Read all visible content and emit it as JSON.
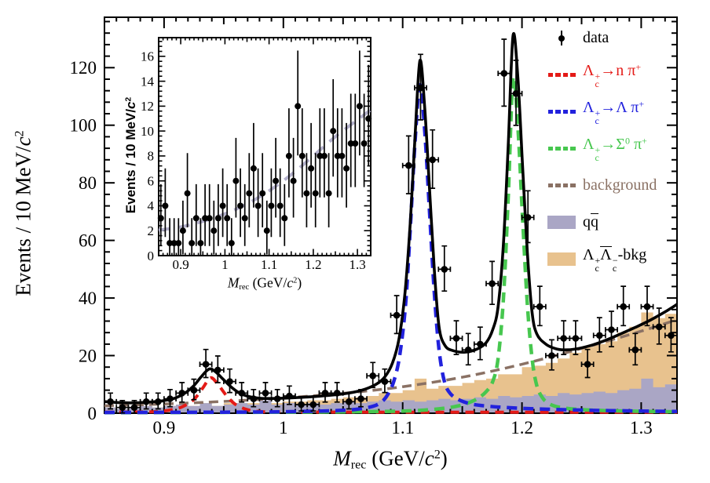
{
  "figure": {
    "description": "Recoil-mass spectrum fit with three signal peaks and backgrounds, with inset of sideband background"
  },
  "colors": {
    "total_fit": "#000000",
    "signal_n_pi": "#e41a17",
    "signal_lambda_pi": "#2222dd",
    "signal_sigma0_pi": "#47c74f",
    "background_curve": "#8a7164",
    "qqbar_fill": "#aaa6c5",
    "lcbkg_fill": "#e8c28e",
    "inset_curve": "#b4b1cc",
    "data_marker": "#000000"
  },
  "legend": {
    "items": [
      {
        "id": "data",
        "marker": "data-point",
        "color": "#000000",
        "text_color": "#000000",
        "parts": [
          {
            "t": "data"
          }
        ]
      },
      {
        "id": "lc-to-n-pi",
        "marker": "dashes",
        "color": "#e41a17",
        "text_color": "#e41a17",
        "parts": [
          {
            "t": "Λ",
            "sub": "c",
            "sup": "+"
          },
          {
            "t": "→n "
          },
          {
            "t": "π",
            "sup": "+"
          }
        ]
      },
      {
        "id": "lc-to-lambda-pi",
        "marker": "dashes",
        "color": "#2222dd",
        "text_color": "#2222dd",
        "parts": [
          {
            "t": "Λ",
            "sub": "c",
            "sup": "+"
          },
          {
            "t": "→Λ "
          },
          {
            "t": "π",
            "sup": "+"
          }
        ]
      },
      {
        "id": "lc-to-sigma0-pi",
        "marker": "dashes",
        "color": "#47c74f",
        "text_color": "#47c74f",
        "parts": [
          {
            "t": "Λ",
            "sub": "c",
            "sup": "+"
          },
          {
            "t": "→"
          },
          {
            "t": "Σ",
            "sup": "0"
          },
          {
            "t": " π",
            "sup": "+"
          }
        ]
      },
      {
        "id": "background",
        "marker": "dashes",
        "color": "#8a7164",
        "text_color": "#8a7164",
        "parts": [
          {
            "t": "background"
          }
        ]
      },
      {
        "id": "qqbar",
        "marker": "fill",
        "color": "#aaa6c5",
        "text_color": "#000000",
        "parts": [
          {
            "t": "q"
          },
          {
            "t": "q",
            "bar": true
          }
        ]
      },
      {
        "id": "lclcbar-bkg",
        "marker": "fill",
        "color": "#e8c28e",
        "text_color": "#000000",
        "parts": [
          {
            "t": "Λ",
            "sub": "c",
            "sup": "+"
          },
          {
            "t": "Λ",
            "bar": true,
            "sub": "c",
            "sup": "−"
          },
          {
            "t": "-bkg"
          }
        ]
      }
    ]
  },
  "chart_data": [
    {
      "id": "main",
      "type": "composite",
      "xlim": [
        0.85,
        1.33
      ],
      "ylim": [
        0,
        137.5
      ],
      "xticks": {
        "major": [
          0.9,
          1.0,
          1.1,
          1.2,
          1.3
        ],
        "labels": [
          "0.9",
          "1",
          "1.1",
          "1.2",
          "1.3"
        ],
        "minor_step": 0.01,
        "medium_step": 0.05
      },
      "yticks": {
        "major": [
          0,
          20,
          40,
          60,
          80,
          100,
          120
        ],
        "labels": [
          "0",
          "20",
          "40",
          "60",
          "80",
          "100",
          "120"
        ],
        "minor_step": 4
      },
      "ylabel_parts": [
        {
          "t": "Events / 10 MeV/"
        },
        {
          "t": "c",
          "i": 1,
          "sup": "2"
        }
      ],
      "xlabel_parts": [
        {
          "t": "M",
          "i": 1,
          "sub": "rec"
        },
        {
          "t": " (GeV/"
        },
        {
          "t": "c",
          "i": 1,
          "sup": "2"
        },
        {
          "t": ")"
        }
      ],
      "bins": {
        "start": 0.855,
        "step": 0.01,
        "data": [
          4,
          2,
          2,
          4,
          4,
          5,
          7,
          8,
          17,
          15,
          11,
          7,
          5,
          7,
          5,
          6,
          3,
          3,
          7,
          7,
          4,
          5,
          13,
          11,
          34,
          86,
          113,
          88,
          50,
          26,
          22,
          24,
          45,
          118,
          111,
          68,
          37,
          20,
          26,
          26,
          17,
          27,
          29,
          37,
          22,
          37,
          30,
          27
        ],
        "qq": [
          2,
          1.5,
          2,
          2.5,
          2,
          2.5,
          3,
          2.5,
          3.5,
          2.5,
          3,
          3.5,
          3,
          4.5,
          3,
          3.5,
          3,
          3.5,
          3,
          3.5,
          4,
          3.5,
          4,
          4.5,
          4,
          4.5,
          4,
          4.5,
          5,
          4.5,
          5,
          5.5,
          5,
          6,
          5.5,
          6,
          6.5,
          6,
          7,
          6.5,
          7,
          7.5,
          7,
          8,
          8.5,
          12,
          9,
          10
        ],
        "lcbkg_extra": [
          0,
          0,
          0,
          0,
          0,
          0,
          0,
          0,
          0,
          0,
          0.5,
          0,
          0.5,
          0,
          0.5,
          0.5,
          1,
          1,
          1.5,
          1.5,
          1.5,
          2,
          2,
          2.5,
          3,
          3.5,
          8,
          4,
          4.5,
          5,
          5.5,
          6,
          7,
          7.5,
          8,
          10,
          10,
          11.5,
          12,
          14.5,
          16,
          16.5,
          18,
          20,
          21.5,
          23,
          24,
          24.5
        ]
      },
      "curves": [
        {
          "id": "background-curve",
          "color": "#8a7164",
          "width": 3.5,
          "dash": "12 7",
          "points": [
            [
              0.85,
              2.6
            ],
            [
              0.9,
              3.2
            ],
            [
              0.95,
              4.1
            ],
            [
              1.0,
              5.3
            ],
            [
              1.05,
              6.9
            ],
            [
              1.1,
              9.2
            ],
            [
              1.15,
              12.5
            ],
            [
              1.2,
              17
            ],
            [
              1.25,
              22.5
            ],
            [
              1.3,
              28.5
            ],
            [
              1.33,
              32.5
            ]
          ]
        },
        {
          "id": "signal-n-pi",
          "color": "#e41a17",
          "width": 4,
          "dash": "11 8",
          "points": [
            [
              0.85,
              0.35
            ],
            [
              0.88,
              0.45
            ],
            [
              0.895,
              0.6
            ],
            [
              0.905,
              1.1
            ],
            [
              0.915,
              2.2
            ],
            [
              0.925,
              4.8
            ],
            [
              0.9325,
              8.8
            ],
            [
              0.939,
              12.3
            ],
            [
              0.9455,
              9.8
            ],
            [
              0.9525,
              6
            ],
            [
              0.96,
              3
            ],
            [
              0.97,
              1.2
            ],
            [
              0.98,
              0.6
            ],
            [
              1.0,
              0.4
            ],
            [
              1.1,
              0.35
            ],
            [
              1.2,
              0.35
            ],
            [
              1.33,
              0.35
            ]
          ]
        },
        {
          "id": "signal-sigma0-pi",
          "color": "#47c74f",
          "width": 4.5,
          "dash": "13 8",
          "points": [
            [
              0.85,
              0.2
            ],
            [
              1.0,
              0.35
            ],
            [
              1.08,
              0.6
            ],
            [
              1.11,
              0.9
            ],
            [
              1.13,
              1.5
            ],
            [
              1.1425,
              2.2
            ],
            [
              1.1525,
              3.2
            ],
            [
              1.1625,
              5
            ],
            [
              1.17,
              7.5
            ],
            [
              1.1755,
              11
            ],
            [
              1.18,
              19
            ],
            [
              1.1845,
              40
            ],
            [
              1.1885,
              75
            ],
            [
              1.1925,
              116
            ],
            [
              1.1965,
              100
            ],
            [
              1.2005,
              68
            ],
            [
              1.2045,
              38
            ],
            [
              1.2085,
              19
            ],
            [
              1.2125,
              9.5
            ],
            [
              1.2175,
              5.2
            ],
            [
              1.2225,
              3.4
            ],
            [
              1.23,
              2.2
            ],
            [
              1.245,
              1.4
            ],
            [
              1.27,
              0.9
            ],
            [
              1.3,
              0.65
            ],
            [
              1.33,
              0.5
            ]
          ]
        },
        {
          "id": "signal-lambda-pi",
          "color": "#2222dd",
          "width": 4.5,
          "dash": "13 8",
          "points": [
            [
              0.85,
              0.25
            ],
            [
              0.95,
              0.35
            ],
            [
              1.0,
              0.5
            ],
            [
              1.04,
              0.85
            ],
            [
              1.06,
              1.3
            ],
            [
              1.075,
              2.4
            ],
            [
              1.0825,
              4
            ],
            [
              1.0875,
              6.5
            ],
            [
              1.0925,
              11
            ],
            [
              1.0975,
              20
            ],
            [
              1.1025,
              38
            ],
            [
              1.1065,
              65
            ],
            [
              1.1105,
              95
            ],
            [
              1.1145,
              114
            ],
            [
              1.1185,
              98
            ],
            [
              1.1225,
              70
            ],
            [
              1.1265,
              42
            ],
            [
              1.1305,
              22
            ],
            [
              1.135,
              11
            ],
            [
              1.14,
              6.8
            ],
            [
              1.1475,
              4.6
            ],
            [
              1.1575,
              3.2
            ],
            [
              1.17,
              2.5
            ],
            [
              1.19,
              1.9
            ],
            [
              1.22,
              1.4
            ],
            [
              1.26,
              1.0
            ],
            [
              1.3,
              0.75
            ],
            [
              1.33,
              0.6
            ]
          ]
        },
        {
          "id": "total-fit",
          "color": "#000000",
          "width": 3.6,
          "dash": null,
          "points": [
            [
              0.85,
              4.05
            ],
            [
              0.862,
              3.7
            ],
            [
              0.875,
              3.6
            ],
            [
              0.89,
              3.95
            ],
            [
              0.9,
              4.4
            ],
            [
              0.9095,
              5.3
            ],
            [
              0.9175,
              7
            ],
            [
              0.925,
              9.6
            ],
            [
              0.931,
              12.6
            ],
            [
              0.9375,
              15.3
            ],
            [
              0.9425,
              14.6
            ],
            [
              0.949,
              12
            ],
            [
              0.956,
              9.2
            ],
            [
              0.9625,
              7.2
            ],
            [
              0.97,
              5.9
            ],
            [
              0.98,
              5.2
            ],
            [
              0.995,
              5.15
            ],
            [
              1.01,
              5.4
            ],
            [
              1.03,
              5.9
            ],
            [
              1.05,
              6.7
            ],
            [
              1.065,
              7.9
            ],
            [
              1.0775,
              10
            ],
            [
              1.085,
              12.6
            ],
            [
              1.0915,
              17.5
            ],
            [
              1.097,
              26
            ],
            [
              1.102,
              42
            ],
            [
              1.1065,
              67
            ],
            [
              1.1105,
              97
            ],
            [
              1.1145,
              122.5
            ],
            [
              1.1185,
              106
            ],
            [
              1.1225,
              78
            ],
            [
              1.1265,
              50
            ],
            [
              1.1305,
              30
            ],
            [
              1.1355,
              23.5
            ],
            [
              1.1425,
              21.7
            ],
            [
              1.1525,
              21.2
            ],
            [
              1.1625,
              22.3
            ],
            [
              1.17,
              24.5
            ],
            [
              1.1755,
              29
            ],
            [
              1.18,
              37
            ],
            [
              1.1845,
              59
            ],
            [
              1.1885,
              93
            ],
            [
              1.1925,
              131
            ],
            [
              1.1965,
              117
            ],
            [
              1.2005,
              86
            ],
            [
              1.2045,
              56
            ],
            [
              1.2085,
              35
            ],
            [
              1.2125,
              27.5
            ],
            [
              1.22,
              24
            ],
            [
              1.2275,
              22.5
            ],
            [
              1.235,
              22
            ],
            [
              1.245,
              22.3
            ],
            [
              1.2575,
              23.5
            ],
            [
              1.27,
              25.3
            ],
            [
              1.2825,
              27.5
            ],
            [
              1.295,
              29.8
            ],
            [
              1.3075,
              32.3
            ],
            [
              1.32,
              35.2
            ],
            [
              1.33,
              37.8
            ]
          ]
        }
      ]
    },
    {
      "id": "inset",
      "type": "scatter-errorbar",
      "xlim": [
        0.85,
        1.33
      ],
      "ylim": [
        0,
        17.5
      ],
      "xticks": {
        "major": [
          0.9,
          1.0,
          1.1,
          1.2,
          1.3
        ],
        "labels": [
          "0.9",
          "1",
          "1.1",
          "1.2",
          "1.3"
        ],
        "minor_step": 0.01,
        "medium_step": 0.05
      },
      "yticks": {
        "major": [
          0,
          2,
          4,
          6,
          8,
          10,
          12,
          14,
          16
        ],
        "labels": [
          "0",
          "2",
          "4",
          "6",
          "8",
          "10",
          "12",
          "14",
          "16"
        ],
        "minor_step": 0.4
      },
      "ylabel_parts": [
        {
          "t": "Events / 10 MeV/"
        },
        {
          "t": "c",
          "i": 1,
          "sup": "2"
        }
      ],
      "xlabel_parts": [
        {
          "t": "M",
          "i": 1,
          "sub": "rec"
        },
        {
          "t": " (GeV/"
        },
        {
          "t": "c",
          "i": 1,
          "sup": "2"
        },
        {
          "t": ")"
        }
      ],
      "bins": {
        "start": 0.855,
        "step": 0.01,
        "data": [
          3,
          4,
          1,
          1,
          1,
          2,
          5,
          1,
          3,
          1,
          3,
          3,
          2,
          3,
          4,
          3,
          1,
          6,
          4,
          3,
          5,
          7,
          4,
          5,
          2,
          4,
          6,
          4,
          3,
          8,
          6,
          12,
          8,
          5,
          7,
          5,
          8,
          8,
          5,
          10,
          8,
          8,
          7,
          9,
          9,
          12,
          9,
          11
        ]
      },
      "curves": [
        {
          "id": "inset-background-curve",
          "color": "#b4b1cc",
          "width": 4,
          "dash": "15 10",
          "points": [
            [
              0.85,
              2.05
            ],
            [
              0.9,
              2.3
            ],
            [
              0.95,
              2.75
            ],
            [
              1.0,
              3.35
            ],
            [
              1.05,
              4.15
            ],
            [
              1.1,
              5.2
            ],
            [
              1.15,
              6.5
            ],
            [
              1.2,
              8.0
            ],
            [
              1.25,
              9.55
            ],
            [
              1.3,
              10.9
            ],
            [
              1.33,
              11.7
            ]
          ]
        }
      ]
    }
  ]
}
